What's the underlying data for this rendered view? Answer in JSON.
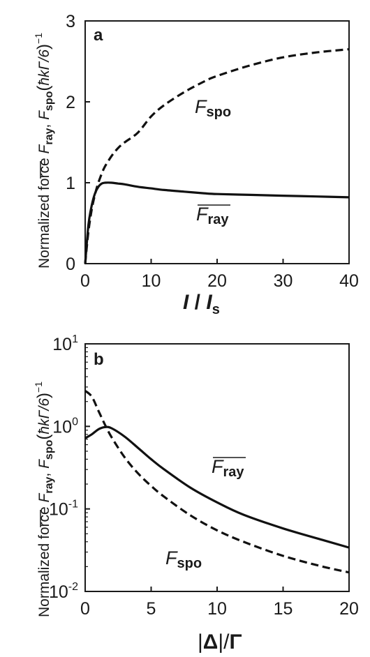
{
  "chart_data": [
    {
      "panel": "a",
      "type": "line",
      "ylabel": {
        "prefix": "Normalized force ",
        "f1": "F",
        "s1": "ray",
        "f2": "F",
        "s2": "spo",
        "unit_open": "(",
        "hbar": "ħ",
        "unit_body": "kΓ/6",
        "unit_close": ")",
        "exponent": "−1"
      },
      "xlabel": {
        "main1": "I",
        "slash": " / ",
        "main2": "I",
        "sub": "s"
      },
      "xlim": [
        0,
        40
      ],
      "ylim": [
        0,
        3
      ],
      "x_ticks": [
        "0",
        "10",
        "20",
        "30",
        "40"
      ],
      "y_ticks": [
        "0",
        "1",
        "2",
        "3"
      ],
      "log_y": false,
      "series": [
        {
          "name": "Fspo",
          "label_main": "F",
          "label_sub": "spo",
          "overline": false,
          "style": "dashed",
          "x": [
            0,
            0.5,
            1,
            1.5,
            2,
            2.5,
            3,
            4,
            5,
            6,
            8,
            10,
            12,
            15,
            18,
            20,
            25,
            30,
            35,
            40
          ],
          "y": [
            0,
            0.4,
            0.67,
            0.86,
            1.0,
            1.11,
            1.2,
            1.33,
            1.43,
            1.5,
            1.62,
            1.82,
            1.96,
            2.12,
            2.25,
            2.32,
            2.45,
            2.55,
            2.61,
            2.65
          ]
        },
        {
          "name": "Fray",
          "label_main": "F",
          "label_sub": "ray",
          "overline": true,
          "style": "solid",
          "x": [
            0,
            0.5,
            1,
            1.5,
            2,
            2.5,
            3,
            4,
            5,
            6,
            8,
            10,
            12,
            15,
            18,
            20,
            25,
            30,
            35,
            40
          ],
          "y": [
            0,
            0.48,
            0.72,
            0.87,
            0.95,
            0.99,
            1.0,
            1.0,
            0.99,
            0.98,
            0.95,
            0.93,
            0.91,
            0.89,
            0.87,
            0.86,
            0.85,
            0.84,
            0.83,
            0.82
          ]
        }
      ]
    },
    {
      "panel": "b",
      "type": "line",
      "ylabel": {
        "prefix": "Normalized force ",
        "f1": "F",
        "s1": "ray",
        "f2": "F",
        "s2": "spo",
        "unit_open": "(",
        "hbar": "ħ",
        "unit_body": "kΓ/6",
        "unit_close": ")",
        "exponent": "−1"
      },
      "xlabel": {
        "bar_left": "|",
        "main1": "Δ",
        "bar_right": "|",
        "slash": "/",
        "main2": "Γ"
      },
      "xlim": [
        0,
        20
      ],
      "ylim": [
        0.01,
        10
      ],
      "x_ticks": [
        "0",
        "5",
        "10",
        "15",
        "20"
      ],
      "y_ticks": [
        {
          "base": "10",
          "exp": "1"
        },
        {
          "base": "10",
          "exp": "0"
        },
        {
          "base": "10",
          "exp": "-1"
        },
        {
          "base": "10",
          "exp": "-2"
        }
      ],
      "log_y": true,
      "series": [
        {
          "name": "Fray",
          "label_main": "F",
          "label_sub": "ray",
          "overline": true,
          "style": "solid",
          "x": [
            0,
            0.5,
            1,
            1.5,
            2,
            3,
            4,
            5,
            6,
            8,
            10,
            12,
            15,
            18,
            20
          ],
          "y": [
            0.72,
            0.8,
            0.92,
            0.98,
            0.95,
            0.75,
            0.55,
            0.4,
            0.3,
            0.18,
            0.12,
            0.085,
            0.058,
            0.042,
            0.034
          ]
        },
        {
          "name": "Fspo",
          "label_main": "F",
          "label_sub": "spo",
          "overline": false,
          "style": "dashed",
          "x": [
            0,
            0.5,
            1,
            1.5,
            2,
            3,
            4,
            5,
            6,
            8,
            10,
            12,
            15,
            18,
            20
          ],
          "y": [
            2.7,
            2.3,
            1.55,
            1.05,
            0.74,
            0.42,
            0.27,
            0.19,
            0.14,
            0.083,
            0.055,
            0.04,
            0.027,
            0.02,
            0.017
          ]
        }
      ]
    }
  ]
}
